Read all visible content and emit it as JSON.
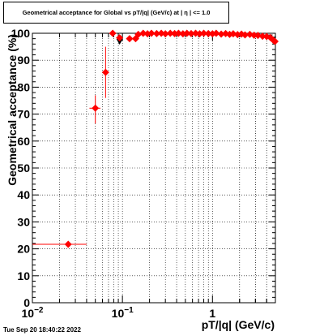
{
  "title": "Geometrical acceptance for Global vs pT/|q| (GeV/c) at |  η  | <= 1.0",
  "timestamp": "Tue Sep 20 18:40:22 2022",
  "chart_data": {
    "type": "scatter",
    "title": "Geometrical acceptance for Global vs pT/|q| (GeV/c) at |  η  | <= 1.0",
    "xlabel": "pT/|q| (GeV/c)",
    "ylabel": "Geometrical acceptance (%)",
    "xscale": "log",
    "xlim": [
      0.01,
      5.0
    ],
    "ylim": [
      0,
      100
    ],
    "x_tick_labels": [
      {
        "value": 0.01,
        "base": "10",
        "exp": "−2"
      },
      {
        "value": 0.1,
        "base": "10",
        "exp": "−1"
      },
      {
        "value": 1,
        "base": "1",
        "exp": ""
      }
    ],
    "y_ticks": [
      0,
      10,
      20,
      30,
      40,
      50,
      60,
      70,
      80,
      90,
      100
    ],
    "grid": true,
    "colors": {
      "series_red": "#ff0000",
      "series_black": "#000000",
      "axis": "#000000"
    },
    "series": [
      {
        "color": "#000000",
        "marker": "triangle-down",
        "points": [
          {
            "x": 0.093,
            "y": 97.0
          },
          {
            "x": 4.3,
            "y": 98.6
          },
          {
            "x": 4.7,
            "y": 97.8
          }
        ]
      },
      {
        "color": "#ff0000",
        "marker": "diamond",
        "points": [
          {
            "x": 0.025,
            "y": 21.7,
            "xlo": 0.01,
            "xhi": 0.04,
            "ylo": 21.4,
            "yhi": 22.0
          },
          {
            "x": 0.05,
            "y": 72.2,
            "xlo": 0.043,
            "xhi": 0.057,
            "ylo": 66.5,
            "yhi": 77.0
          },
          {
            "x": 0.065,
            "y": 85.5,
            "xlo": 0.061,
            "xhi": 0.069,
            "ylo": 76.0,
            "yhi": 95.0
          },
          {
            "x": 0.078,
            "y": 100.0
          },
          {
            "x": 0.093,
            "y": 98.3
          },
          {
            "x": 0.12,
            "y": 98.0
          },
          {
            "x": 0.14,
            "y": 98.0
          },
          {
            "x": 0.15,
            "y": 99.6
          },
          {
            "x": 0.17,
            "y": 100.0
          },
          {
            "x": 0.19,
            "y": 99.8
          },
          {
            "x": 0.21,
            "y": 100.0
          },
          {
            "x": 0.24,
            "y": 99.9
          },
          {
            "x": 0.27,
            "y": 100.0
          },
          {
            "x": 0.3,
            "y": 99.8
          },
          {
            "x": 0.34,
            "y": 100.0
          },
          {
            "x": 0.38,
            "y": 99.9
          },
          {
            "x": 0.42,
            "y": 100.0
          },
          {
            "x": 0.47,
            "y": 99.8
          },
          {
            "x": 0.52,
            "y": 100.0
          },
          {
            "x": 0.58,
            "y": 99.9
          },
          {
            "x": 0.65,
            "y": 100.0
          },
          {
            "x": 0.72,
            "y": 99.8
          },
          {
            "x": 0.8,
            "y": 100.0
          },
          {
            "x": 0.9,
            "y": 99.9
          },
          {
            "x": 1.0,
            "y": 99.8
          },
          {
            "x": 1.1,
            "y": 100.0
          },
          {
            "x": 1.25,
            "y": 99.7
          },
          {
            "x": 1.4,
            "y": 99.9
          },
          {
            "x": 1.55,
            "y": 99.6
          },
          {
            "x": 1.7,
            "y": 99.8
          },
          {
            "x": 1.9,
            "y": 99.5
          },
          {
            "x": 2.1,
            "y": 99.7
          },
          {
            "x": 2.3,
            "y": 99.4
          },
          {
            "x": 2.6,
            "y": 99.6
          },
          {
            "x": 2.9,
            "y": 99.3
          },
          {
            "x": 3.2,
            "y": 99.2
          },
          {
            "x": 3.6,
            "y": 98.9
          },
          {
            "x": 4.0,
            "y": 98.8
          },
          {
            "x": 4.4,
            "y": 98.4
          },
          {
            "x": 4.75,
            "y": 97.4
          },
          {
            "x": 4.95,
            "y": 97.0
          }
        ]
      }
    ]
  }
}
